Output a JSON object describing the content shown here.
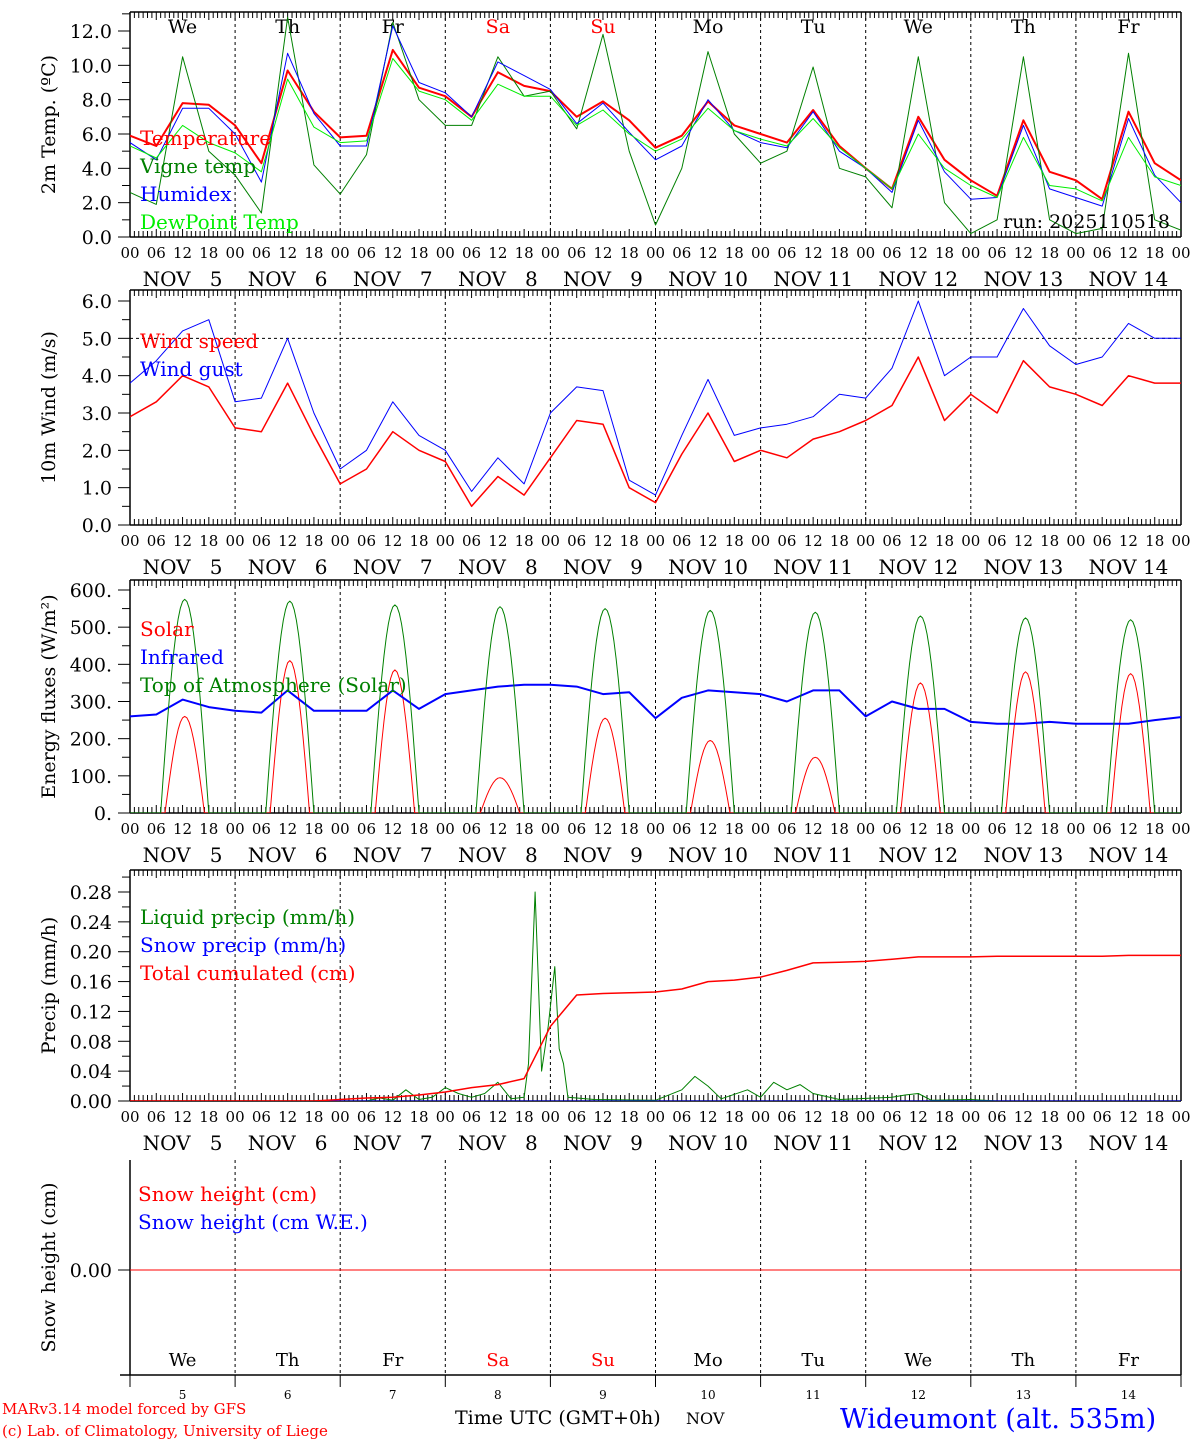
{
  "footer": {
    "model": "MARv3.14 model forced by GFS",
    "copyright": "(c) Lab. of Climatology, University of Liege",
    "xlabel": "Time UTC (GMT+0h)",
    "month": "NOV",
    "station": "Wideumont (alt. 535m)"
  },
  "colors": {
    "red": "#ff0000",
    "blue": "#0000ff",
    "green": "#008000",
    "lightgreen": "#00ee00",
    "axis": "#000000",
    "weekend": "#ff0000"
  },
  "chart_data": {
    "type": "line",
    "hour_labels": [
      "00",
      "06",
      "12",
      "18"
    ],
    "x_start_hours": 0,
    "x_end_hours": 240,
    "days": [
      {
        "name": "We",
        "date": "NOV  5",
        "num": "5",
        "weekend": false
      },
      {
        "name": "Th",
        "date": "NOV  6",
        "num": "6",
        "weekend": false
      },
      {
        "name": "Fr",
        "date": "NOV  7",
        "num": "7",
        "weekend": false
      },
      {
        "name": "Sa",
        "date": "NOV  8",
        "num": "8",
        "weekend": true
      },
      {
        "name": "Su",
        "date": "NOV  9",
        "num": "9",
        "weekend": true
      },
      {
        "name": "Mo",
        "date": "NOV 10",
        "num": "10",
        "weekend": false
      },
      {
        "name": "Tu",
        "date": "NOV 11",
        "num": "11",
        "weekend": false
      },
      {
        "name": "We",
        "date": "NOV 12",
        "num": "12",
        "weekend": false
      },
      {
        "name": "Th",
        "date": "NOV 13",
        "num": "13",
        "weekend": false
      },
      {
        "name": "Fr",
        "date": "NOV 14",
        "num": "14",
        "weekend": false
      }
    ],
    "panels": [
      {
        "id": "temperature",
        "ylabel": "2m Temp. (ºC)",
        "ylim": [
          0,
          13
        ],
        "yticks": [
          "0.0",
          "2.0",
          "4.0",
          "6.0",
          "8.0",
          "10.0",
          "12.0"
        ],
        "ytick_values": [
          0,
          2,
          4,
          6,
          8,
          10,
          12
        ],
        "minor_step": 1,
        "annotation": "run: 2025110518",
        "step_hours": 6,
        "series": [
          {
            "name": "Temperature",
            "color": "#ff0000",
            "width": 2,
            "values": [
              5.9,
              5.3,
              7.8,
              7.7,
              6.5,
              4.3,
              9.7,
              7.3,
              5.8,
              5.9,
              10.9,
              8.7,
              8.2,
              7.0,
              9.6,
              8.8,
              8.5,
              7.0,
              7.9,
              6.8,
              5.2,
              5.9,
              7.9,
              6.5,
              6.0,
              5.5,
              7.4,
              5.3,
              4.0,
              2.8,
              7.0,
              4.5,
              3.3,
              2.4,
              6.8,
              3.8,
              3.3,
              2.2,
              7.3,
              4.3,
              3.3
            ]
          },
          {
            "name": "Vigne temp",
            "color": "#008000",
            "width": 1,
            "values": [
              2.6,
              1.9,
              10.5,
              5.0,
              3.6,
              1.4,
              12.8,
              4.2,
              2.5,
              4.8,
              12.5,
              8.0,
              6.5,
              6.5,
              10.5,
              8.2,
              8.5,
              6.3,
              11.8,
              5.0,
              0.7,
              4.0,
              10.8,
              6.0,
              4.3,
              5.0,
              9.9,
              4.0,
              3.5,
              1.7,
              10.5,
              2.0,
              0.2,
              1.0,
              10.5,
              1.0,
              0.2,
              0.5,
              10.7,
              1.0,
              0.4
            ]
          },
          {
            "name": "Humidex",
            "color": "#0000ff",
            "width": 1,
            "values": [
              5.5,
              4.5,
              7.5,
              7.5,
              6.0,
              3.2,
              10.7,
              7.2,
              5.3,
              5.3,
              12.3,
              9.0,
              8.4,
              7.0,
              10.2,
              9.4,
              8.6,
              6.6,
              7.8,
              6.1,
              4.5,
              5.3,
              8.0,
              6.2,
              5.5,
              5.2,
              7.3,
              5.0,
              4.0,
              2.6,
              6.8,
              3.8,
              2.2,
              2.3,
              6.5,
              2.8,
              2.3,
              1.8,
              6.9,
              3.6,
              2.0
            ]
          },
          {
            "name": "DewPoint Temp",
            "color": "#00ee00",
            "width": 1,
            "values": [
              5.3,
              4.6,
              6.5,
              5.5,
              4.9,
              3.8,
              9.2,
              6.4,
              5.5,
              5.6,
              10.4,
              8.5,
              8.0,
              6.8,
              8.9,
              8.2,
              8.2,
              6.5,
              7.4,
              6.0,
              5.0,
              5.7,
              7.5,
              6.2,
              5.7,
              5.3,
              6.9,
              5.2,
              4.0,
              2.8,
              6.0,
              4.0,
              3.0,
              2.3,
              5.8,
              3.0,
              2.8,
              2.1,
              5.8,
              3.5,
              3.0
            ]
          }
        ]
      },
      {
        "id": "wind",
        "ylabel": "10m Wind (m/s)",
        "ylim": [
          0,
          6.3
        ],
        "yticks": [
          "0.0",
          "1.0",
          "2.0",
          "3.0",
          "4.0",
          "5.0",
          "6.0"
        ],
        "ytick_values": [
          0,
          1,
          2,
          3,
          4,
          5,
          6
        ],
        "minor_step": 0.5,
        "reference_line": 5.0,
        "step_hours": 6,
        "series": [
          {
            "name": "Wind speed",
            "color": "#ff0000",
            "width": 1.5,
            "values": [
              2.9,
              3.3,
              4.0,
              3.7,
              2.6,
              2.5,
              3.8,
              2.4,
              1.1,
              1.5,
              2.5,
              2.0,
              1.7,
              0.5,
              1.3,
              0.8,
              1.8,
              2.8,
              2.7,
              1.0,
              0.6,
              1.9,
              3.0,
              1.7,
              2.0,
              1.8,
              2.3,
              2.5,
              2.8,
              3.2,
              4.5,
              2.8,
              3.5,
              3.0,
              4.4,
              3.7,
              3.5,
              3.2,
              4.0,
              3.8,
              3.8
            ]
          },
          {
            "name": "Wind gust",
            "color": "#0000ff",
            "width": 1,
            "values": [
              3.8,
              4.4,
              5.2,
              5.5,
              3.3,
              3.4,
              5.0,
              3.0,
              1.5,
              2.0,
              3.3,
              2.4,
              2.0,
              0.9,
              1.8,
              1.1,
              3.0,
              3.7,
              3.6,
              1.2,
              0.8,
              2.4,
              3.9,
              2.4,
              2.6,
              2.7,
              2.9,
              3.5,
              3.4,
              4.2,
              6.0,
              4.0,
              4.5,
              4.5,
              5.8,
              4.8,
              4.3,
              4.5,
              5.4,
              5.0,
              5.0
            ]
          }
        ]
      },
      {
        "id": "energy",
        "ylabel": "Energy fluxes (W/m²)",
        "ylim": [
          0,
          628
        ],
        "yticks": [
          "0.",
          "100.",
          "200.",
          "300.",
          "400.",
          "500.",
          "600."
        ],
        "ytick_values": [
          0,
          100,
          200,
          300,
          400,
          500,
          600
        ],
        "minor_step": 50,
        "step_hours": 6,
        "series": [
          {
            "name": "Solar",
            "color": "#ff0000",
            "width": 1,
            "daily_peak": [
              260,
              410,
              385,
              95,
              255,
              195,
              150,
              350,
              380,
              375
            ],
            "sunrise_hour": 8,
            "sunset_hour": 17
          },
          {
            "name": "Infrared",
            "color": "#0000ff",
            "width": 2,
            "values": [
              260,
              265,
              305,
              285,
              275,
              270,
              330,
              275,
              275,
              275,
              330,
              280,
              320,
              330,
              340,
              345,
              345,
              340,
              320,
              325,
              255,
              310,
              330,
              325,
              320,
              300,
              330,
              330,
              260,
              300,
              280,
              280,
              245,
              240,
              240,
              245,
              240,
              240,
              240,
              250,
              258
            ]
          },
          {
            "name": "Top of Atmosphere (Solar)",
            "color": "#008000",
            "width": 1,
            "daily_peak": [
              575,
              570,
              560,
              555,
              550,
              545,
              540,
              530,
              525,
              520
            ],
            "sunrise_hour": 7,
            "sunset_hour": 18
          }
        ]
      },
      {
        "id": "precip",
        "ylabel": "Precip (mm/h)",
        "ylim": [
          0,
          0.3
        ],
        "yticks": [
          "0.00",
          "0.04",
          "0.08",
          "0.12",
          "0.16",
          "0.20",
          "0.24",
          "0.28"
        ],
        "ytick_values": [
          0,
          0.04,
          0.08,
          0.12,
          0.16,
          0.2,
          0.24,
          0.28
        ],
        "minor_step": 0.02,
        "series": [
          {
            "name": "Liquid precip (mm/h)",
            "color": "#008000",
            "width": 1,
            "points": [
              [
                0,
                0
              ],
              [
                54,
                0
              ],
              [
                57,
                0.004
              ],
              [
                60,
                0.001
              ],
              [
                63,
                0.015
              ],
              [
                66,
                0.002
              ],
              [
                69,
                0.005
              ],
              [
                72,
                0.018
              ],
              [
                75,
                0.01
              ],
              [
                78,
                0.005
              ],
              [
                81,
                0.01
              ],
              [
                84,
                0.025
              ],
              [
                87,
                0.003
              ],
              [
                90,
                0.005
              ],
              [
                91,
                0.05
              ],
              [
                92.5,
                0.28
              ],
              [
                94,
                0.04
              ],
              [
                95.5,
                0.1
              ],
              [
                97,
                0.18
              ],
              [
                98,
                0.07
              ],
              [
                99,
                0.05
              ],
              [
                100,
                0.005
              ],
              [
                106,
                0.002
              ],
              [
                120,
                0.001
              ],
              [
                126,
                0.015
              ],
              [
                129,
                0.033
              ],
              [
                132,
                0.02
              ],
              [
                135,
                0.003
              ],
              [
                141,
                0.015
              ],
              [
                144,
                0.005
              ],
              [
                147,
                0.025
              ],
              [
                150,
                0.015
              ],
              [
                153,
                0.022
              ],
              [
                156,
                0.01
              ],
              [
                162,
                0.002
              ],
              [
                174,
                0.005
              ],
              [
                177,
                0.008
              ],
              [
                180,
                0.01
              ],
              [
                183,
                0.001
              ],
              [
                192,
                0.002
              ],
              [
                198,
                0
              ],
              [
                240,
                0
              ]
            ]
          },
          {
            "name": "Snow precip (mm/h)",
            "color": "#0000ff",
            "width": 1,
            "points": [
              [
                0,
                0
              ],
              [
                240,
                0
              ]
            ]
          },
          {
            "name": "Total cumulated (cm)",
            "color": "#ff0000",
            "width": 1.5,
            "step_hours": 6,
            "values": [
              0,
              0,
              0,
              0,
              0,
              0,
              0,
              0,
              0.002,
              0.004,
              0.005,
              0.008,
              0.012,
              0.018,
              0.022,
              0.03,
              0.1,
              0.142,
              0.144,
              0.145,
              0.146,
              0.15,
              0.16,
              0.162,
              0.166,
              0.175,
              0.185,
              0.186,
              0.187,
              0.19,
              0.193,
              0.193,
              0.193,
              0.194,
              0.194,
              0.194,
              0.194,
              0.194,
              0.195,
              0.195,
              0.195
            ]
          }
        ]
      },
      {
        "id": "snow",
        "ylabel": "Snow height (cm)",
        "ylim": [
          -1,
          1
        ],
        "yticks": [
          "0.00"
        ],
        "ytick_values": [
          0
        ],
        "series": [
          {
            "name": "Snow height (cm)",
            "color": "#ff0000",
            "width": 1,
            "points": [
              [
                0,
                0
              ],
              [
                240,
                0
              ]
            ]
          },
          {
            "name": "Snow height (cm W.E.)",
            "color": "#0000ff",
            "width": 1,
            "points": []
          }
        ]
      }
    ]
  }
}
